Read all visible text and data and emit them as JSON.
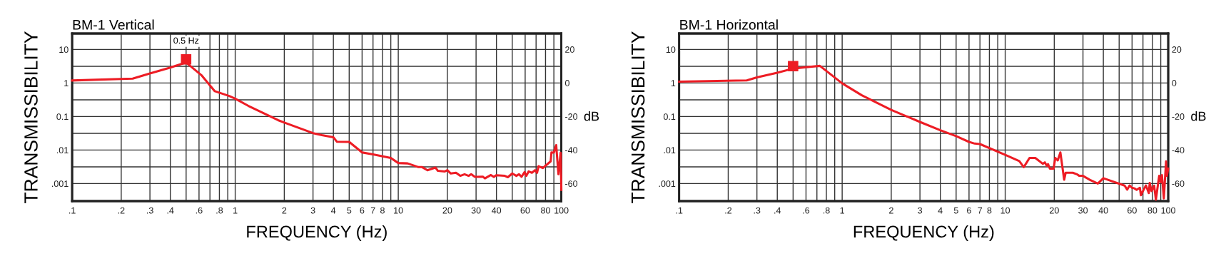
{
  "chart_data": [
    {
      "type": "line",
      "title": "BM-1 Vertical",
      "xlabel": "FREQUENCY (Hz)",
      "ylabel": "TRANSMISSIBILITY",
      "y2label": "dB",
      "log": "xy",
      "grid": true,
      "marker": "none",
      "line_style": "solid",
      "xlim": [
        0.1,
        100
      ],
      "xticks": [
        {
          "value": 0.1,
          "label": ".1"
        },
        {
          "value": 0.2,
          "label": ".2"
        },
        {
          "value": 0.3,
          "label": ".3"
        },
        {
          "value": 0.4,
          "label": ".4"
        },
        {
          "value": 0.5,
          "label": null
        },
        {
          "value": 0.6,
          "label": ".6"
        },
        {
          "value": 0.7,
          "label": null
        },
        {
          "value": 0.8,
          "label": ".8"
        },
        {
          "value": 0.9,
          "label": null
        },
        1,
        2,
        3,
        4,
        5,
        6,
        7,
        8,
        {
          "value": 9,
          "label": null
        },
        10,
        20,
        30,
        40,
        {
          "value": 50,
          "label": null
        },
        60,
        {
          "value": 70,
          "label": null
        },
        80,
        {
          "value": 90,
          "label": null
        },
        100
      ],
      "ylim": [
        0.0003,
        30
      ],
      "yticks": [
        {
          "value": 0.001,
          "label": ".001"
        },
        {
          "value": 0.00316,
          "label": null
        },
        {
          "value": 0.01,
          "label": ".01"
        },
        {
          "value": 0.0316,
          "label": null
        },
        0.1,
        {
          "value": 0.316,
          "label": null
        },
        1,
        {
          "value": 3.16,
          "label": null
        },
        10
      ],
      "y2lim": [
        -70.5,
        29.5
      ],
      "y2ticks": [
        -60,
        -40,
        -20,
        0,
        20
      ],
      "annotations": [
        {
          "text": "0.5 Hz",
          "x": 0.5,
          "y": 5.1
        }
      ],
      "series": [
        {
          "color": "#ed1c24",
          "x": [
            0.1,
            0.235,
            0.3,
            0.4,
            0.5,
            0.62,
            0.75,
            0.92,
            1,
            1.2,
            1.83,
            2,
            3,
            3.4,
            4,
            4.2,
            5,
            6,
            7,
            9,
            10,
            11.4,
            13.3,
            14,
            15.1,
            16.9,
            17.5,
            19.3,
            20,
            21,
            22.6,
            24,
            25.5,
            27,
            28,
            29.5,
            33,
            34,
            37,
            38.5,
            40,
            45,
            47,
            50,
            53,
            55,
            57,
            59.5,
            61,
            63,
            66,
            69,
            71,
            72.5,
            77,
            86,
            87,
            90,
            93,
            96,
            99,
            100
          ],
          "values": [
            1.19,
            1.35,
            1.93,
            2.9,
            4.1,
            1.72,
            0.57,
            0.41,
            0.34,
            0.21,
            0.078,
            0.066,
            0.032,
            0.028,
            0.024,
            0.0178,
            0.0175,
            0.0085,
            0.0074,
            0.0058,
            0.0041,
            0.004,
            0.0031,
            0.0031,
            0.0025,
            0.003,
            0.0024,
            0.0023,
            0.0025,
            0.002,
            0.0021,
            0.0017,
            0.0019,
            0.0017,
            0.0019,
            0.00158,
            0.0016,
            0.00143,
            0.0018,
            0.00158,
            0.00178,
            0.0017,
            0.00155,
            0.002,
            0.0017,
            0.0019,
            0.0016,
            0.0022,
            0.0017,
            0.0023,
            0.0021,
            0.0025,
            0.0021,
            0.0033,
            0.0029,
            0.0046,
            0.0085,
            0.0084,
            0.014,
            0.0019,
            0.0083,
            0.00065
          ]
        },
        {
          "type": "scatter",
          "marker": "square",
          "color": "#ed1c24",
          "x": [
            0.5
          ],
          "values": [
            5.1
          ]
        }
      ]
    },
    {
      "type": "line",
      "title": "BM-1 Horizontal",
      "xlabel": "FREQUENCY (Hz)",
      "ylabel": "TRANSMISSIBILITY",
      "y2label": "dB",
      "log": "xy",
      "grid": true,
      "marker": "none",
      "line_style": "solid",
      "xlim": [
        0.1,
        100
      ],
      "xticks": [
        {
          "value": 0.1,
          "label": ".1"
        },
        {
          "value": 0.2,
          "label": ".2"
        },
        {
          "value": 0.3,
          "label": ".3"
        },
        {
          "value": 0.4,
          "label": ".4"
        },
        {
          "value": 0.5,
          "label": null
        },
        {
          "value": 0.6,
          "label": ".6"
        },
        {
          "value": 0.7,
          "label": null
        },
        {
          "value": 0.8,
          "label": ".8"
        },
        {
          "value": 0.9,
          "label": null
        },
        1,
        2,
        3,
        4,
        5,
        6,
        7,
        8,
        {
          "value": 9,
          "label": null
        },
        10,
        20,
        30,
        40,
        {
          "value": 50,
          "label": null
        },
        60,
        {
          "value": 70,
          "label": null
        },
        80,
        {
          "value": 90,
          "label": null
        },
        100
      ],
      "ylim": [
        0.0003,
        30
      ],
      "yticks": [
        {
          "value": 0.001,
          "label": ".001"
        },
        {
          "value": 0.00316,
          "label": null
        },
        {
          "value": 0.01,
          "label": ".01"
        },
        {
          "value": 0.0316,
          "label": null
        },
        0.1,
        {
          "value": 0.316,
          "label": null
        },
        1,
        {
          "value": 3.16,
          "label": null
        },
        10
      ],
      "y2lim": [
        -70.5,
        29.5
      ],
      "y2ticks": [
        -60,
        -40,
        -20,
        0,
        20
      ],
      "series": [
        {
          "color": "#ed1c24",
          "x": [
            0.1,
            0.26,
            0.3,
            0.4,
            0.5,
            0.6,
            0.73,
            1,
            1.32,
            2,
            3,
            4,
            5,
            6,
            6.5,
            7,
            10,
            12.2,
            13,
            14.1,
            15.3,
            17,
            17.5,
            18,
            18.3,
            18.8,
            19.8,
            20.3,
            21,
            21.8,
            23,
            23.5,
            26,
            27.5,
            28.5,
            30,
            33,
            37,
            40,
            54,
            56,
            58,
            60,
            62,
            64,
            67,
            68,
            70,
            73,
            76,
            77,
            79,
            82,
            84,
            88,
            90,
            91.5,
            94,
            97,
            98,
            100
          ],
          "values": [
            1.1,
            1.2,
            1.47,
            2.03,
            2.7,
            2.95,
            3.25,
            0.98,
            0.43,
            0.158,
            0.069,
            0.039,
            0.026,
            0.0175,
            0.0156,
            0.0151,
            0.0072,
            0.0047,
            0.0031,
            0.0058,
            0.0058,
            0.0039,
            0.0043,
            0.0034,
            0.0038,
            0.0028,
            0.0028,
            0.0058,
            0.0049,
            0.0085,
            0.0013,
            0.0021,
            0.0021,
            0.0019,
            0.0017,
            0.0017,
            0.0013,
            0.001,
            0.00145,
            0.00087,
            0.00066,
            0.00088,
            0.00075,
            0.00072,
            0.00065,
            0.00075,
            0.00045,
            0.0006,
            0.00088,
            0.00052,
            0.00105,
            0.0006,
            0.00087,
            0.00033,
            0.0017,
            0.0011,
            0.0018,
            0.00036,
            0.0046,
            0.0017,
            0.0028
          ]
        },
        {
          "type": "scatter",
          "marker": "square",
          "color": "#ed1c24",
          "x": [
            0.5
          ],
          "values": [
            3.2
          ]
        }
      ]
    }
  ]
}
